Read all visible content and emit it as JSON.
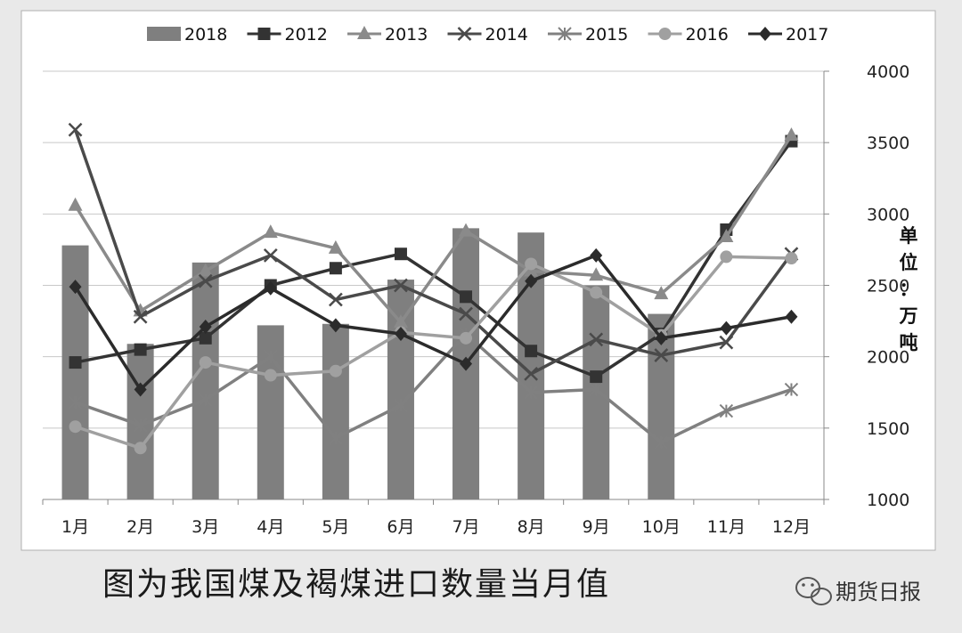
{
  "caption": "图为我国煤及褐煤进口数量当月值",
  "watermark": "期货日报",
  "chart_data": {
    "type": "bar",
    "categories": [
      "1月",
      "2月",
      "3月",
      "4月",
      "5月",
      "6月",
      "7月",
      "8月",
      "9月",
      "10月",
      "11月",
      "12月"
    ],
    "ylim": [
      1000,
      4000
    ],
    "yticks": [
      "1000",
      "1500",
      "2000",
      "2500",
      "3000",
      "3500",
      "4000"
    ],
    "ylabel": "单位：万吨",
    "ylabel_chars": [
      "单",
      "位",
      "：",
      "万",
      "吨"
    ],
    "grid": true,
    "legend_position": "top",
    "bar_series": {
      "name": "2018",
      "color": "#7f7f7f",
      "values": [
        2780,
        2090,
        2660,
        2220,
        2230,
        2540,
        2900,
        2870,
        2500,
        2300
      ]
    },
    "series": [
      {
        "name": "2012",
        "marker": "square",
        "color": "#333333",
        "values": [
          1960,
          2050,
          2130,
          2500,
          2620,
          2720,
          2420,
          2040,
          1860,
          2160,
          2890,
          3510
        ]
      },
      {
        "name": "2013",
        "marker": "triangle",
        "color": "#8a8a8a",
        "values": [
          3060,
          2320,
          2600,
          2870,
          2760,
          2240,
          2880,
          2600,
          2570,
          2440,
          2840,
          3550
        ]
      },
      {
        "name": "2014",
        "marker": "x",
        "color": "#4a4a4a",
        "values": [
          3590,
          2280,
          2530,
          2710,
          2400,
          2500,
          2300,
          1880,
          2120,
          2010,
          2100,
          2720
        ]
      },
      {
        "name": "2015",
        "marker": "star",
        "color": "#808080",
        "values": [
          1680,
          1520,
          1700,
          2000,
          1430,
          1660,
          2160,
          1750,
          1770,
          1400,
          1620,
          1770
        ]
      },
      {
        "name": "2016",
        "marker": "circle",
        "color": "#a0a0a0",
        "values": [
          1510,
          1360,
          1960,
          1870,
          1900,
          2170,
          2130,
          2650,
          2450,
          2150,
          2700,
          2690
        ]
      },
      {
        "name": "2017",
        "marker": "diamond",
        "color": "#2b2b2b",
        "values": [
          2490,
          1770,
          2210,
          2480,
          2220,
          2160,
          1950,
          2530,
          2710,
          2130,
          2200,
          2280
        ]
      }
    ]
  }
}
